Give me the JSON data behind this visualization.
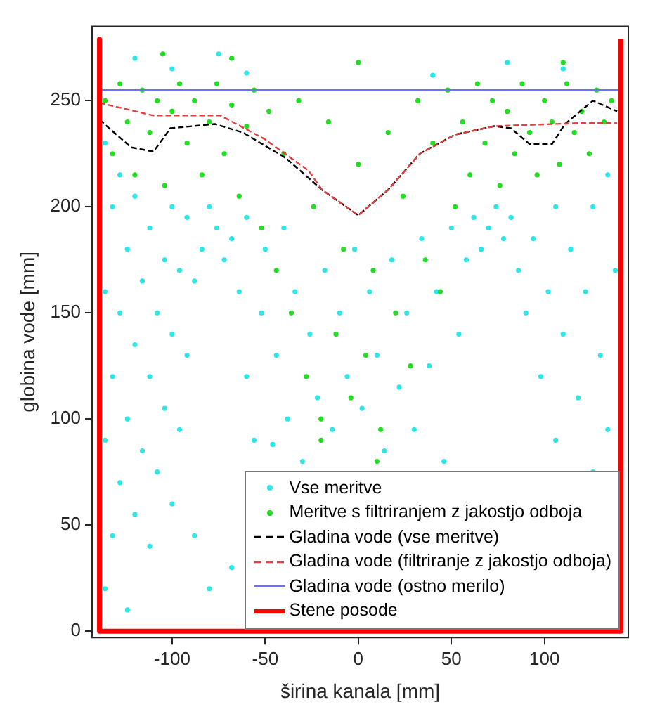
{
  "chart_data": {
    "type": "scatter",
    "xlabel": "širina kanala [mm]",
    "ylabel": "globina vode [mm]",
    "xlim": [
      -143,
      145
    ],
    "ylim": [
      -3,
      285
    ],
    "xticks": [
      -100,
      -50,
      0,
      50,
      100
    ],
    "yticks": [
      0,
      50,
      100,
      150,
      200,
      250
    ],
    "grid": false,
    "legend": "bottom right",
    "series": [
      {
        "name": "Vse meritve",
        "marker": "circle",
        "color": "#2ee6e6",
        "x": [
          -136,
          -136,
          -136,
          -136,
          -132,
          -132,
          -132,
          -128,
          -128,
          -128,
          -124,
          -124,
          -124,
          -120,
          -120,
          -120,
          -116,
          -116,
          -112,
          -112,
          -112,
          -108,
          -108,
          -104,
          -104,
          -100,
          -100,
          -100,
          -96,
          -96,
          -92,
          -92,
          -88,
          -88,
          -84,
          -80,
          -80,
          -76,
          -72,
          -68,
          -68,
          -64,
          -60,
          -60,
          -56,
          -52,
          -50,
          -46,
          -44,
          -40,
          -38,
          -34,
          -30,
          -26,
          -22,
          -18,
          -14,
          -10,
          -6,
          -2,
          2,
          6,
          10,
          14,
          18,
          22,
          26,
          30,
          34,
          38,
          42,
          46,
          50,
          54,
          58,
          62,
          66,
          70,
          74,
          78,
          82,
          86,
          90,
          94,
          98,
          102,
          106,
          106,
          110,
          114,
          118,
          122,
          126,
          126,
          130,
          134,
          134,
          138,
          -120,
          -100,
          -60,
          40,
          80,
          110,
          -75
        ],
        "values": [
          20,
          90,
          160,
          230,
          45,
          120,
          200,
          70,
          150,
          215,
          10,
          100,
          180,
          55,
          135,
          205,
          85,
          165,
          40,
          120,
          190,
          75,
          150,
          105,
          175,
          60,
          140,
          200,
          95,
          170,
          130,
          195,
          45,
          165,
          180,
          20,
          200,
          190,
          175,
          30,
          185,
          160,
          120,
          195,
          90,
          150,
          180,
          88,
          130,
          190,
          100,
          160,
          80,
          140,
          110,
          170,
          95,
          150,
          120,
          180,
          105,
          160,
          130,
          85,
          175,
          115,
          150,
          95,
          185,
          125,
          160,
          80,
          190,
          140,
          175,
          195,
          180,
          190,
          200,
          185,
          195,
          170,
          150,
          185,
          120,
          160,
          90,
          200,
          140,
          180,
          110,
          160,
          75,
          200,
          130,
          95,
          215,
          170,
          270,
          265,
          263,
          262,
          268,
          265,
          272
        ]
      },
      {
        "name": "Meritve s filtriranjem z jakostjo odboja",
        "marker": "circle",
        "color": "#22dd22",
        "x": [
          -136,
          -132,
          -128,
          -124,
          -120,
          -116,
          -112,
          -108,
          -104,
          -100,
          -96,
          -92,
          -88,
          -84,
          -80,
          -76,
          -72,
          -68,
          -64,
          -60,
          -56,
          -52,
          -48,
          -44,
          -40,
          -36,
          -32,
          -28,
          -24,
          -20,
          -16,
          -12,
          -8,
          -4,
          0,
          4,
          8,
          12,
          16,
          20,
          24,
          28,
          32,
          36,
          40,
          44,
          48,
          52,
          56,
          60,
          64,
          68,
          72,
          76,
          80,
          84,
          88,
          92,
          96,
          100,
          104,
          108,
          112,
          116,
          120,
          124,
          128,
          132,
          136,
          -105,
          -68,
          0,
          110,
          -20,
          10
        ],
        "values": [
          250,
          225,
          258,
          240,
          215,
          255,
          235,
          250,
          210,
          245,
          258,
          230,
          250,
          215,
          240,
          258,
          225,
          248,
          205,
          238,
          255,
          190,
          245,
          170,
          225,
          150,
          250,
          120,
          200,
          100,
          240,
          140,
          180,
          110,
          220,
          130,
          170,
          95,
          235,
          150,
          205,
          125,
          250,
          175,
          230,
          160,
          255,
          200,
          240,
          215,
          258,
          230,
          250,
          210,
          245,
          225,
          258,
          235,
          215,
          250,
          240,
          220,
          258,
          235,
          245,
          225,
          255,
          240,
          250,
          272,
          270,
          268,
          268,
          90,
          80
        ]
      },
      {
        "name": "Gladina vode (vse meritve)",
        "type": "line",
        "marker": "none",
        "line_style": "dashed",
        "color": "#000000",
        "x": [
          -139,
          -122,
          -110,
          -101,
          -77,
          -62,
          -39,
          -19.5,
          0,
          16,
          33,
          52,
          73,
          82,
          92,
          104,
          111,
          126,
          139
        ],
        "values": [
          241,
          228,
          226,
          237,
          239,
          235,
          223,
          208,
          196,
          208,
          225,
          234,
          238,
          237,
          229.5,
          229.5,
          239,
          250,
          245
        ]
      },
      {
        "name": "Gladina vode (filtriranje z jakostjo odboja)",
        "type": "line",
        "marker": "none",
        "line_style": "dashed",
        "color": "#e04040",
        "x": [
          -139,
          -110,
          -74,
          -50.5,
          -26.7,
          -19.5,
          0,
          16,
          33,
          52,
          73,
          121,
          139
        ],
        "values": [
          249,
          243,
          243,
          232,
          217,
          208,
          196,
          208,
          225,
          234,
          238,
          239.5,
          239.5
        ]
      },
      {
        "name": "Gladina vode (ostno merilo)",
        "type": "line",
        "marker": "none",
        "line_style": "solid",
        "color": "#6f6fff",
        "x": [
          -139,
          141
        ],
        "values": [
          255,
          255
        ]
      },
      {
        "name": "Stene posode",
        "type": "line",
        "marker": "none",
        "line_style": "solid",
        "color": "#ff0000",
        "x": [
          -139,
          -139,
          141,
          141
        ],
        "values": [
          279,
          0,
          0,
          279
        ]
      }
    ]
  }
}
